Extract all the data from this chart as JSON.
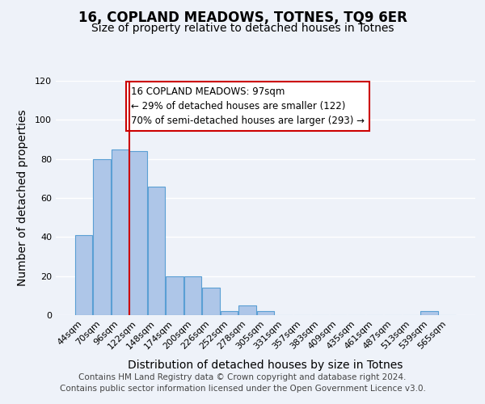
{
  "title": "16, COPLAND MEADOWS, TOTNES, TQ9 6ER",
  "subtitle": "Size of property relative to detached houses in Totnes",
  "xlabel": "Distribution of detached houses by size in Totnes",
  "ylabel": "Number of detached properties",
  "bar_labels": [
    "44sqm",
    "70sqm",
    "96sqm",
    "122sqm",
    "148sqm",
    "174sqm",
    "200sqm",
    "226sqm",
    "252sqm",
    "278sqm",
    "305sqm",
    "331sqm",
    "357sqm",
    "383sqm",
    "409sqm",
    "435sqm",
    "461sqm",
    "487sqm",
    "513sqm",
    "539sqm",
    "565sqm"
  ],
  "bar_values": [
    41,
    80,
    85,
    84,
    66,
    20,
    20,
    14,
    2,
    5,
    2,
    0,
    0,
    0,
    0,
    0,
    0,
    0,
    0,
    2,
    0
  ],
  "bar_color": "#aec6e8",
  "bar_edge_color": "#5a9fd4",
  "property_line_color": "#cc0000",
  "annotation_text": "16 COPLAND MEADOWS: 97sqm\n← 29% of detached houses are smaller (122)\n70% of semi-detached houses are larger (293) →",
  "annotation_box_color": "#ffffff",
  "annotation_box_edge_color": "#cc0000",
  "ylim": [
    0,
    120
  ],
  "yticks": [
    0,
    20,
    40,
    60,
    80,
    100,
    120
  ],
  "footer_line1": "Contains HM Land Registry data © Crown copyright and database right 2024.",
  "footer_line2": "Contains public sector information licensed under the Open Government Licence v3.0.",
  "background_color": "#eef2f9",
  "grid_color": "#ffffff",
  "title_fontsize": 12,
  "subtitle_fontsize": 10,
  "axis_label_fontsize": 10,
  "tick_fontsize": 8,
  "annotation_fontsize": 8.5,
  "footer_fontsize": 7.5
}
